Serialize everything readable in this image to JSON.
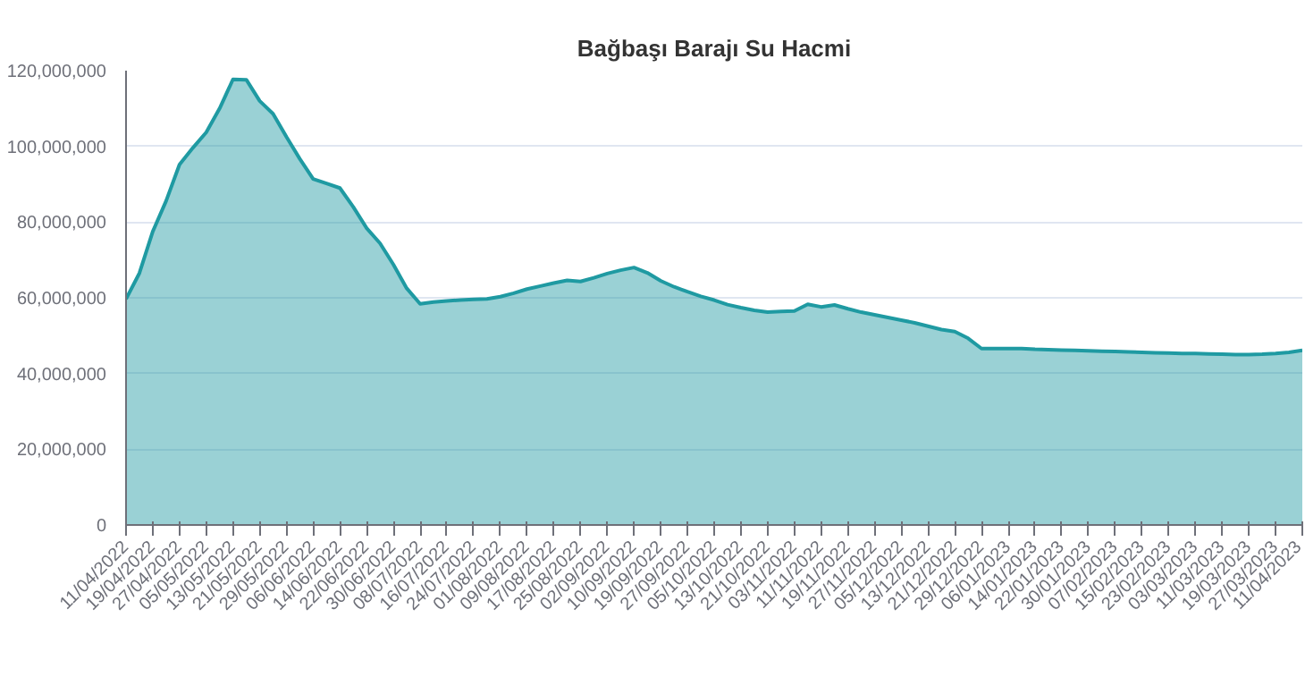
{
  "chart_data": {
    "type": "area",
    "title": "Bağbaşı Barajı Su Hacmi",
    "categories": [
      "11/04/2022",
      null,
      "19/04/2022",
      null,
      "27/04/2022",
      null,
      "05/05/2022",
      null,
      "13/05/2022",
      null,
      "21/05/2022",
      null,
      "29/05/2022",
      null,
      "06/06/2022",
      null,
      "14/06/2022",
      null,
      "22/06/2022",
      null,
      "30/06/2022",
      null,
      "08/07/2022",
      null,
      "16/07/2022",
      null,
      "24/07/2022",
      null,
      "01/08/2022",
      null,
      "09/08/2022",
      null,
      "17/08/2022",
      null,
      "25/08/2022",
      null,
      "02/09/2022",
      null,
      "10/09/2022",
      null,
      "19/09/2022",
      null,
      "27/09/2022",
      null,
      "05/10/2022",
      null,
      "13/10/2022",
      null,
      "21/10/2022",
      null,
      "03/11/2022",
      null,
      "11/11/2022",
      null,
      "19/11/2022",
      null,
      "27/11/2022",
      null,
      "05/12/2022",
      null,
      "13/12/2022",
      null,
      "21/12/2022",
      null,
      "29/12/2022",
      null,
      "06/01/2023",
      null,
      "14/01/2023",
      null,
      "22/01/2023",
      null,
      "30/01/2023",
      null,
      "07/02/2023",
      null,
      "15/02/2023",
      null,
      "23/02/2023",
      null,
      "03/03/2023",
      null,
      "11/03/2023",
      null,
      "19/03/2023",
      null,
      "27/03/2023",
      null,
      "11/04/2023"
    ],
    "series": [
      {
        "color": "#1f9aa2",
        "values": [
          59700000,
          66500000,
          77500000,
          85600000,
          95200000,
          99600000,
          103700000,
          110000000,
          117700000,
          117600000,
          112000000,
          108600000,
          102500000,
          96700000,
          91400000,
          90200000,
          89000000,
          84000000,
          78400000,
          74400000,
          68800000,
          62500000,
          58400000,
          58900000,
          59200000,
          59400000,
          59600000,
          59700000,
          60300000,
          61200000,
          62300000,
          63100000,
          63900000,
          64600000,
          64300000,
          65300000,
          66400000,
          67300000,
          68000000,
          66600000,
          64500000,
          62900000,
          61600000,
          60400000,
          59400000,
          58200000,
          57400000,
          56700000,
          56200000,
          56400000,
          56500000,
          58300000,
          57600000,
          58100000,
          57100000,
          56200000,
          55500000,
          54800000,
          54100000,
          53400000,
          52500000,
          51600000,
          51100000,
          49300000,
          46600000,
          46600000,
          46600000,
          46600000,
          46400000,
          46300000,
          46200000,
          46100000,
          46000000,
          45900000,
          45800000,
          45700000,
          45600000,
          45500000,
          45400000,
          45300000,
          45300000,
          45200000,
          45100000,
          45000000,
          45000000,
          45100000,
          45300000,
          45600000,
          46100000
        ]
      }
    ],
    "ylim": [
      0,
      120000000
    ],
    "yticks": [
      {
        "value": 0,
        "label": "0"
      },
      {
        "value": 20000000,
        "label": "20,000,000"
      },
      {
        "value": 40000000,
        "label": "40,000,000"
      },
      {
        "value": 60000000,
        "label": "60,000,000"
      },
      {
        "value": 80000000,
        "label": "80,000,000"
      },
      {
        "value": 100000000,
        "label": "100,000,000"
      },
      {
        "value": 120000000,
        "label": "120,000,000"
      }
    ],
    "grid": "y",
    "marker": "none"
  }
}
